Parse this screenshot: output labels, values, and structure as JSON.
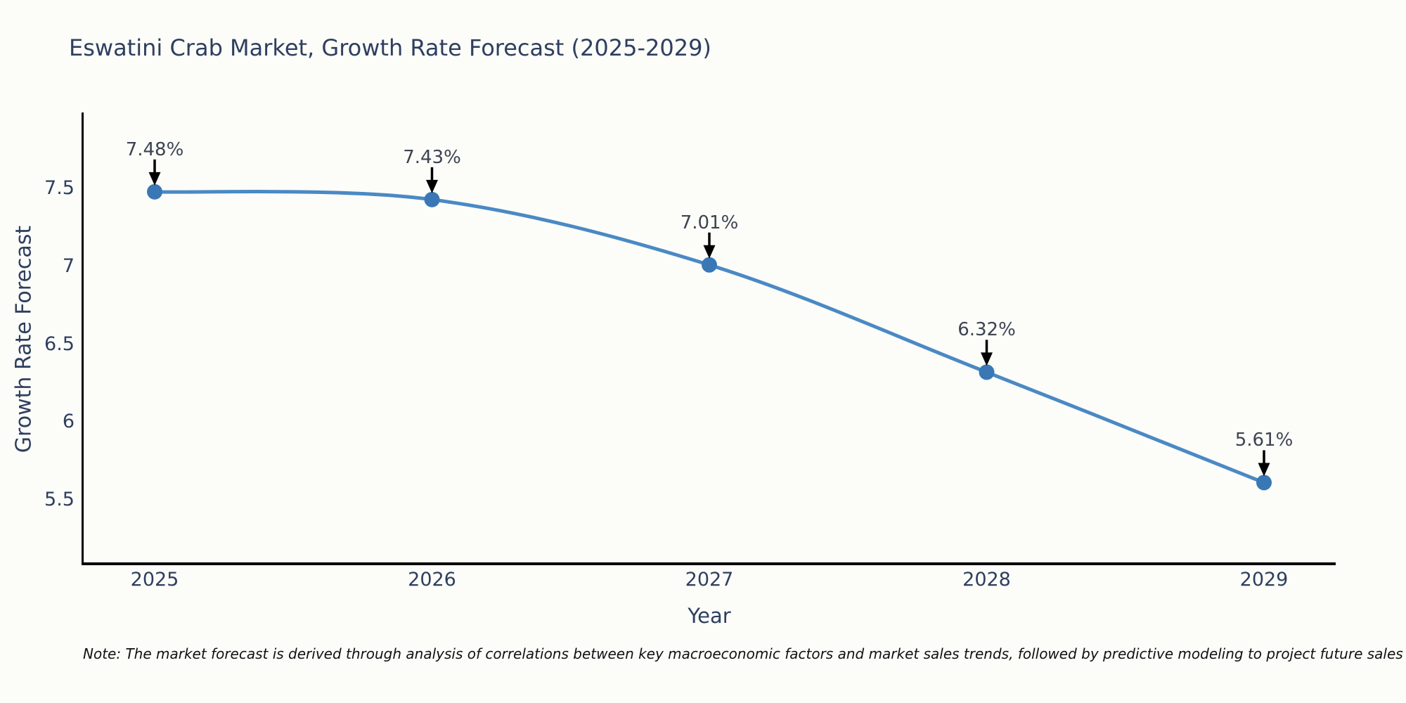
{
  "title": "Eswatini Crab Market, Growth Rate Forecast (2025-2029)",
  "note": "Note: The market forecast is derived through analysis of correlations between key macroeconomic factors and market sales trends, followed by predictive modeling to project future sales",
  "colors": {
    "background": "#fcfcf9",
    "line": "#4a89c4",
    "marker": "#3a78b5",
    "arrow": "#000000",
    "heading_text": "#2e3f5f",
    "annotation_text": "#3d4451",
    "axis_line": "#000000"
  },
  "chart_data": {
    "type": "line",
    "title": "Eswatini Crab Market, Growth Rate Forecast (2025-2029)",
    "xlabel": "Year",
    "ylabel": "Growth Rate Forecast",
    "categories": [
      "2025",
      "2026",
      "2027",
      "2028",
      "2029"
    ],
    "values": [
      7.48,
      7.43,
      7.01,
      6.32,
      5.61
    ],
    "labels": [
      "7.48%",
      "7.43%",
      "7.01%",
      "6.32%",
      "5.61%"
    ],
    "yticks": [
      5.5,
      6,
      6.5,
      7,
      7.5
    ],
    "ytick_labels": [
      "5.5",
      "6",
      "6.5",
      "7",
      "7.5"
    ],
    "ylim": [
      5.09,
      7.99
    ],
    "grid": false,
    "legend": "none",
    "line_shape": "spline",
    "point_annotations_with_arrows": true
  }
}
